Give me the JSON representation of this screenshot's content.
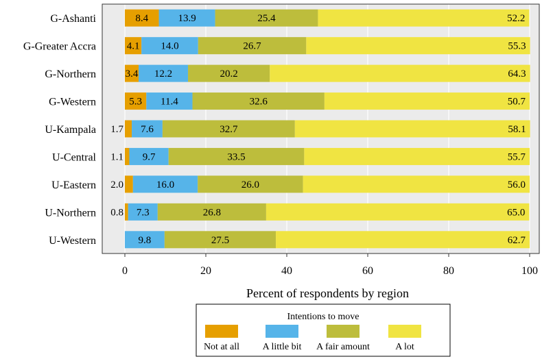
{
  "chart_data": {
    "type": "bar",
    "orientation": "horizontal",
    "stacked": true,
    "categories": [
      "G-Ashanti",
      "G-Greater Accra",
      "G-Northern",
      "G-Western",
      "U-Kampala",
      "U-Central",
      "U-Eastern",
      "U-Northern",
      "U-Western"
    ],
    "series": [
      {
        "name": "Not at all",
        "color": "#E69F00",
        "values": [
          8.4,
          4.1,
          3.4,
          5.3,
          1.7,
          1.1,
          2.0,
          0.8,
          null
        ],
        "labels": [
          "8.4",
          "4.1",
          "3.4",
          "5.3",
          "1.7",
          "1.1",
          "2.0",
          "0.8",
          ""
        ]
      },
      {
        "name": "A little bit",
        "color": "#56B4E9",
        "values": [
          13.9,
          14.0,
          12.2,
          11.4,
          7.6,
          9.7,
          16.0,
          7.3,
          9.8
        ],
        "labels": [
          "13.9",
          "14.0",
          "12.2",
          "11.4",
          "7.6",
          "9.7",
          "16.0",
          "7.3",
          "9.8"
        ]
      },
      {
        "name": "A fair amount",
        "color": "#BDBD3C",
        "values": [
          25.4,
          26.7,
          20.2,
          32.6,
          32.7,
          33.5,
          26.0,
          26.8,
          27.5
        ],
        "labels": [
          "25.4",
          "26.7",
          "20.2",
          "32.6",
          "32.7",
          "33.5",
          "26.0",
          "26.8",
          "27.5"
        ]
      },
      {
        "name": "A lot",
        "color": "#F0E442",
        "values": [
          52.2,
          55.3,
          64.3,
          50.7,
          58.1,
          55.7,
          56.0,
          65.0,
          62.7
        ],
        "labels": [
          "52.2",
          "55.3",
          "64.3",
          "50.7",
          "58.1",
          "55.7",
          "56.0",
          "65.0",
          "62.7"
        ]
      }
    ],
    "xlabel": "Percent of respondents by region",
    "ylabel": "",
    "xlim": [
      0,
      100
    ],
    "xticks": [
      0,
      20,
      40,
      60,
      80,
      100
    ],
    "xtick_labels": [
      "0",
      "20",
      "40",
      "60",
      "80",
      "100"
    ],
    "grid": true,
    "legend": {
      "title": "Intentions to move",
      "position": "bottom"
    }
  }
}
